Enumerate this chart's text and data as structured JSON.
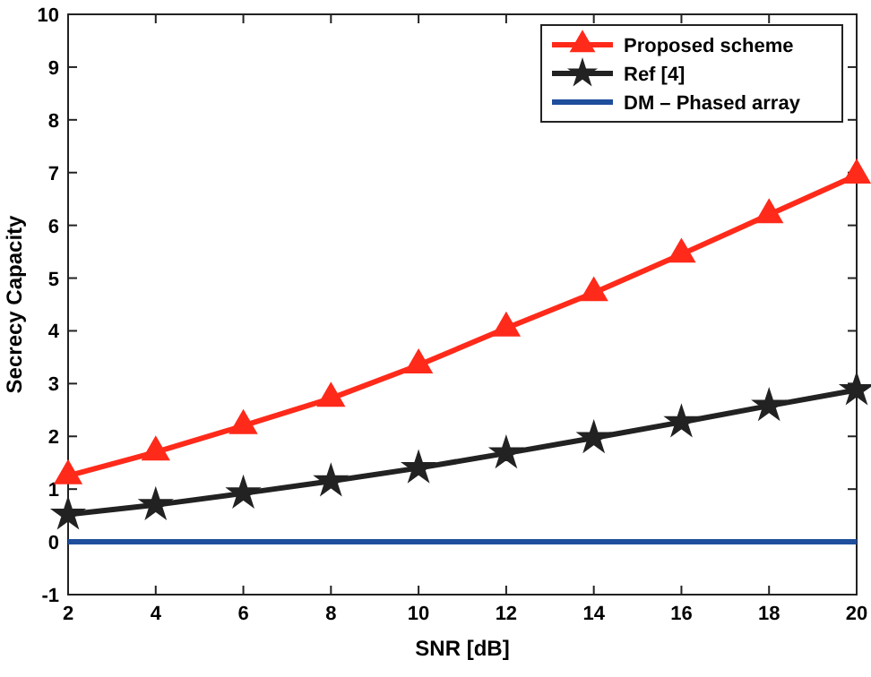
{
  "chart_data": {
    "type": "line",
    "xlabel": "SNR [dB]",
    "ylabel": "Secrecy Capacity",
    "x": [
      2,
      4,
      6,
      8,
      10,
      12,
      14,
      16,
      18,
      20
    ],
    "series": [
      {
        "name": "Proposed scheme",
        "color": "#ff2a1a",
        "marker": "triangle",
        "values": [
          1.25,
          1.7,
          2.2,
          2.72,
          3.35,
          4.05,
          4.72,
          5.45,
          6.2,
          6.95
        ]
      },
      {
        "name": "Ref [4]",
        "color": "#222222",
        "marker": "star",
        "values": [
          0.52,
          0.7,
          0.92,
          1.15,
          1.4,
          1.68,
          1.97,
          2.27,
          2.58,
          2.88
        ]
      },
      {
        "name": "DM – Phased array",
        "color": "#1f4e9c",
        "marker": "none",
        "values": [
          0,
          0,
          0,
          0,
          0,
          0,
          0,
          0,
          0,
          0
        ]
      }
    ],
    "xlim": [
      2,
      20
    ],
    "xticks": [
      2,
      4,
      6,
      8,
      10,
      12,
      14,
      16,
      18,
      20
    ],
    "ylim": [
      -1,
      10
    ],
    "yticks": [
      -1,
      0,
      1,
      2,
      3,
      4,
      5,
      6,
      7,
      8,
      9,
      10
    ],
    "grid": false,
    "legend": "top right",
    "line_style": "solid"
  }
}
